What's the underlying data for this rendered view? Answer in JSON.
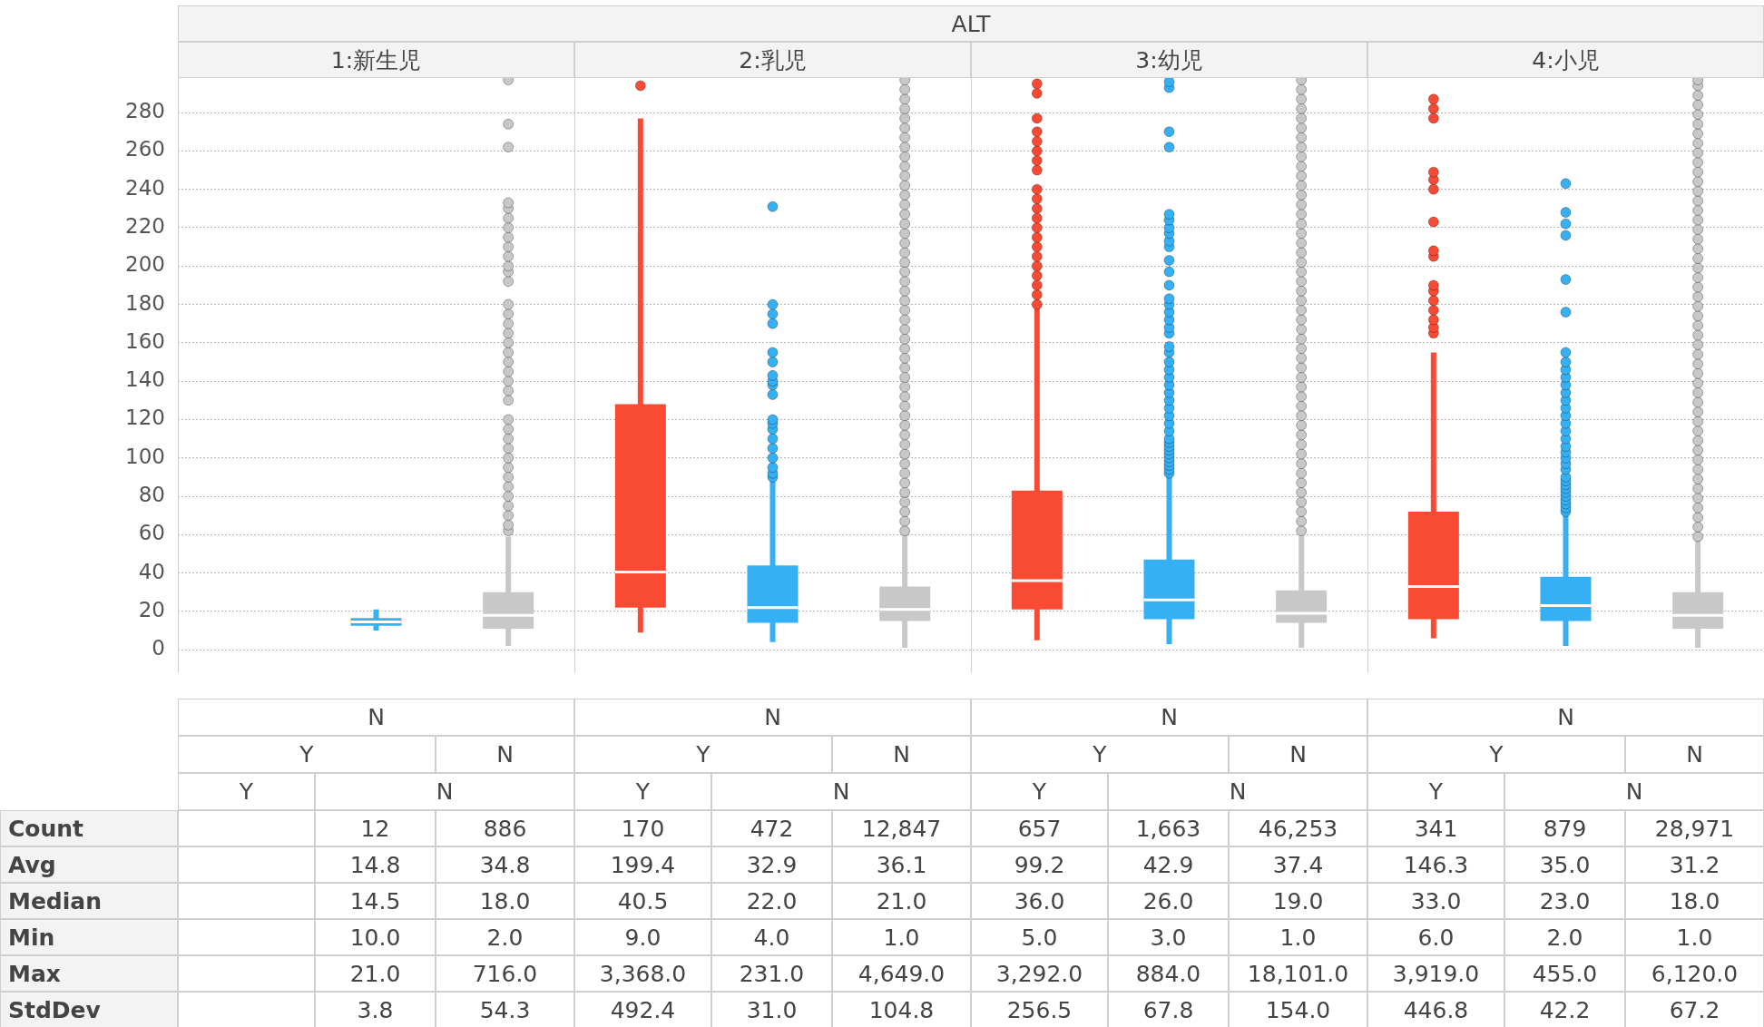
{
  "chart_data": [
    {
      "type": "box",
      "title": "ALT",
      "categories": [
        null,
        null,
        null,
        null,
        null,
        null,
        null,
        null,
        null,
        null,
        null,
        null
      ],
      "colors": [
        null,
        "#35b0f5",
        "#c8c8c8",
        "#f94b33",
        "#35b0f5",
        "#c8c8c8",
        "#f94b33",
        "#35b0f5",
        "#c8c8c8",
        "#f94b33",
        "#35b0f5",
        "#c8c8c8"
      ],
      "ylim": [
        -12,
        298
      ],
      "yticks": [
        0,
        20,
        40,
        60,
        80,
        100,
        120,
        140,
        160,
        180,
        200,
        220,
        240,
        260,
        280
      ],
      "grid": "y",
      "annotations": [
        "1:新生児",
        "2:乳児",
        "3:幼児",
        "4:小児"
      ],
      "boxes": [
        null,
        {
          "low": 10,
          "q1": 12.5,
          "median": 14.5,
          "q3": 16.5,
          "high": 21
        },
        {
          "low": 2,
          "q1": 11,
          "median": 18,
          "q3": 30,
          "high": 59,
          "outliers": [
            62,
            65,
            70,
            75,
            80,
            85,
            90,
            95,
            100,
            105,
            110,
            115,
            120,
            130,
            135,
            140,
            145,
            150,
            155,
            160,
            165,
            170,
            175,
            180,
            192,
            197,
            200,
            205,
            210,
            215,
            220,
            225,
            230,
            233,
            262,
            274,
            297
          ]
        },
        {
          "low": 9,
          "q1": 22,
          "median": 40.5,
          "q3": 128,
          "high": 277,
          "outliers": [
            294
          ]
        },
        {
          "low": 4,
          "q1": 14,
          "median": 22,
          "q3": 44,
          "high": 88,
          "outliers": [
            90,
            92,
            95,
            100,
            105,
            110,
            115,
            118,
            120,
            133,
            138,
            140,
            143,
            150,
            155,
            170,
            175,
            180,
            231
          ]
        },
        {
          "low": 1,
          "q1": 15,
          "median": 21,
          "q3": 33,
          "high": 60,
          "outliers": [
            62,
            67,
            72,
            77,
            82,
            87,
            92,
            97,
            102,
            107,
            112,
            117,
            122,
            127,
            132,
            137,
            142,
            147,
            152,
            157,
            162,
            167,
            172,
            177,
            182,
            187,
            192,
            197,
            202,
            207,
            212,
            217,
            222,
            227,
            232,
            237,
            242,
            247,
            252,
            257,
            262,
            267,
            272,
            277,
            282,
            287,
            292,
            297
          ]
        },
        {
          "low": 5,
          "q1": 21,
          "median": 36,
          "q3": 83,
          "high": 178,
          "outliers": [
            180,
            185,
            190,
            195,
            200,
            205,
            210,
            215,
            220,
            225,
            230,
            235,
            240,
            250,
            255,
            260,
            265,
            270,
            277,
            290,
            295
          ]
        },
        {
          "low": 3,
          "q1": 16,
          "median": 26,
          "q3": 47,
          "high": 90,
          "outliers": [
            92,
            94,
            96,
            98,
            100,
            102,
            104,
            106,
            108,
            110,
            114,
            118,
            122,
            126,
            130,
            134,
            138,
            142,
            146,
            150,
            155,
            158,
            165,
            168,
            172,
            176,
            180,
            183,
            190,
            197,
            203,
            210,
            213,
            217,
            220,
            224,
            227,
            262,
            270,
            293,
            296
          ]
        },
        {
          "low": 1,
          "q1": 14,
          "median": 19,
          "q3": 31,
          "high": 60,
          "outliers": [
            62,
            67,
            72,
            77,
            82,
            87,
            92,
            97,
            102,
            107,
            112,
            117,
            122,
            127,
            132,
            137,
            142,
            147,
            152,
            157,
            162,
            167,
            172,
            177,
            182,
            187,
            192,
            197,
            202,
            207,
            212,
            217,
            222,
            227,
            232,
            237,
            242,
            247,
            252,
            257,
            262,
            267,
            272,
            277,
            282,
            287,
            292,
            297
          ]
        },
        {
          "low": 6,
          "q1": 16,
          "median": 33,
          "q3": 72,
          "high": 155,
          "outliers": [
            165,
            168,
            172,
            177,
            182,
            187,
            190,
            205,
            208,
            223,
            240,
            245,
            249,
            277,
            282,
            287
          ]
        },
        {
          "low": 2,
          "q1": 15,
          "median": 23,
          "q3": 38,
          "high": 70,
          "outliers": [
            72,
            74,
            76,
            78,
            80,
            82,
            84,
            86,
            88,
            90,
            94,
            97,
            100,
            103,
            106,
            110,
            114,
            118,
            122,
            126,
            130,
            134,
            138,
            142,
            146,
            150,
            155,
            176,
            193,
            216,
            222,
            228,
            243
          ]
        },
        {
          "low": 1,
          "q1": 11,
          "median": 18,
          "q3": 30,
          "high": 57,
          "outliers": [
            59,
            64,
            69,
            74,
            79,
            84,
            89,
            94,
            99,
            104,
            109,
            114,
            119,
            124,
            129,
            134,
            139,
            144,
            149,
            154,
            159,
            164,
            169,
            174,
            179,
            184,
            189,
            194,
            199,
            204,
            209,
            214,
            219,
            224,
            229,
            234,
            239,
            244,
            249,
            254,
            259,
            264,
            269,
            274,
            279,
            284,
            289,
            294,
            297
          ]
        }
      ]
    },
    {
      "type": "other",
      "annotations": [
        "N",
        "Y",
        "N",
        "Y",
        "N",
        "N",
        "Y",
        "N",
        "Y",
        "N",
        "N",
        "Y",
        "N",
        "Y",
        "N",
        "N",
        "Y",
        "N",
        "Y",
        "N"
      ],
      "y_categories": [
        "Count",
        "Avg",
        "Median",
        "Min",
        "Max",
        "StdDev"
      ],
      "cell_labels": [
        [
          null,
          "12",
          "886",
          "170",
          "472",
          "12,847",
          "657",
          "1,663",
          "46,253",
          "341",
          "879",
          "28,971"
        ],
        [
          null,
          "14.8",
          "34.8",
          "199.4",
          "32.9",
          "36.1",
          "99.2",
          "42.9",
          "37.4",
          "146.3",
          "35.0",
          "31.2"
        ],
        [
          null,
          "14.5",
          "18.0",
          "40.5",
          "22.0",
          "21.0",
          "36.0",
          "26.0",
          "19.0",
          "33.0",
          "23.0",
          "18.0"
        ],
        [
          null,
          "10.0",
          "2.0",
          "9.0",
          "4.0",
          "1.0",
          "5.0",
          "3.0",
          "1.0",
          "6.0",
          "2.0",
          "1.0"
        ],
        [
          null,
          "21.0",
          "716.0",
          "3,368.0",
          "231.0",
          "4,649.0",
          "3,292.0",
          "884.0",
          "18,101.0",
          "3,919.0",
          "455.0",
          "6,120.0"
        ],
        [
          null,
          "3.8",
          "54.3",
          "492.4",
          "31.0",
          "104.8",
          "256.5",
          "67.8",
          "154.0",
          "446.8",
          "42.2",
          "67.2"
        ]
      ]
    }
  ]
}
